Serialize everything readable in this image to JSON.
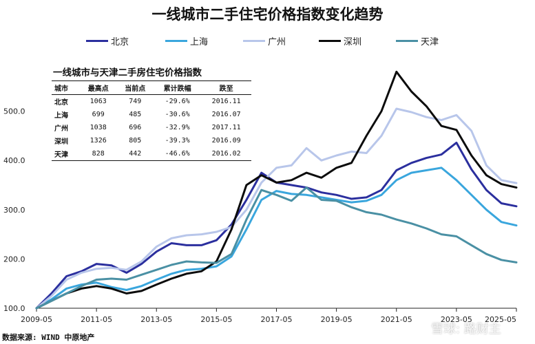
{
  "chart_data": {
    "type": "line",
    "title": "一线城市二手住宅价格指数变化趋势",
    "xlabel": "",
    "ylabel": "",
    "ylim": [
      100,
      600
    ],
    "xlim": [
      "2009-05",
      "2025-05"
    ],
    "x_ticks": [
      "2009-05",
      "2011-05",
      "2013-05",
      "2015-05",
      "2017-05",
      "2019-05",
      "2021-05",
      "2023-05",
      "2025-05"
    ],
    "y_ticks": [
      "100.0",
      "200.0",
      "300.0",
      "400.0",
      "500.0"
    ],
    "grid": false,
    "legend_position": "top",
    "series": [
      {
        "name": "北京",
        "color": "#2b2f9e",
        "points": [
          [
            "2009-05",
            100
          ],
          [
            "2009-11",
            130
          ],
          [
            "2010-05",
            165
          ],
          [
            "2010-11",
            175
          ],
          [
            "2011-05",
            190
          ],
          [
            "2011-11",
            187
          ],
          [
            "2012-05",
            172
          ],
          [
            "2012-11",
            190
          ],
          [
            "2013-05",
            215
          ],
          [
            "2013-11",
            232
          ],
          [
            "2014-05",
            228
          ],
          [
            "2014-11",
            228
          ],
          [
            "2015-05",
            238
          ],
          [
            "2015-11",
            270
          ],
          [
            "2016-05",
            320
          ],
          [
            "2016-11",
            375
          ],
          [
            "2017-05",
            355
          ],
          [
            "2017-11",
            350
          ],
          [
            "2018-05",
            345
          ],
          [
            "2018-11",
            335
          ],
          [
            "2019-05",
            330
          ],
          [
            "2019-11",
            322
          ],
          [
            "2020-05",
            325
          ],
          [
            "2020-11",
            340
          ],
          [
            "2021-05",
            380
          ],
          [
            "2021-11",
            395
          ],
          [
            "2022-05",
            405
          ],
          [
            "2022-11",
            412
          ],
          [
            "2023-05",
            436
          ],
          [
            "2023-11",
            382
          ],
          [
            "2024-05",
            340
          ],
          [
            "2024-11",
            313
          ],
          [
            "2025-05",
            307
          ]
        ]
      },
      {
        "name": "上海",
        "color": "#3aa6dd",
        "points": [
          [
            "2009-05",
            100
          ],
          [
            "2009-11",
            118
          ],
          [
            "2010-05",
            140
          ],
          [
            "2010-11",
            148
          ],
          [
            "2011-05",
            152
          ],
          [
            "2011-11",
            143
          ],
          [
            "2012-05",
            137
          ],
          [
            "2012-11",
            145
          ],
          [
            "2013-05",
            158
          ],
          [
            "2013-11",
            170
          ],
          [
            "2014-05",
            178
          ],
          [
            "2014-11",
            180
          ],
          [
            "2015-05",
            185
          ],
          [
            "2015-11",
            205
          ],
          [
            "2016-05",
            260
          ],
          [
            "2016-11",
            320
          ],
          [
            "2017-05",
            338
          ],
          [
            "2017-11",
            332
          ],
          [
            "2018-05",
            330
          ],
          [
            "2018-11",
            325
          ],
          [
            "2019-05",
            320
          ],
          [
            "2019-11",
            315
          ],
          [
            "2020-05",
            318
          ],
          [
            "2020-11",
            330
          ],
          [
            "2021-05",
            360
          ],
          [
            "2021-11",
            375
          ],
          [
            "2022-05",
            380
          ],
          [
            "2022-11",
            385
          ],
          [
            "2023-05",
            360
          ],
          [
            "2023-11",
            330
          ],
          [
            "2024-05",
            300
          ],
          [
            "2024-11",
            275
          ],
          [
            "2025-05",
            268
          ]
        ]
      },
      {
        "name": "广州",
        "color": "#b8c6ea",
        "points": [
          [
            "2009-05",
            100
          ],
          [
            "2009-11",
            125
          ],
          [
            "2010-05",
            158
          ],
          [
            "2010-11",
            172
          ],
          [
            "2011-05",
            180
          ],
          [
            "2011-11",
            182
          ],
          [
            "2012-05",
            178
          ],
          [
            "2012-11",
            195
          ],
          [
            "2013-05",
            225
          ],
          [
            "2013-11",
            242
          ],
          [
            "2014-05",
            248
          ],
          [
            "2014-11",
            250
          ],
          [
            "2015-05",
            255
          ],
          [
            "2015-11",
            265
          ],
          [
            "2016-05",
            300
          ],
          [
            "2016-11",
            355
          ],
          [
            "2017-05",
            385
          ],
          [
            "2017-11",
            390
          ],
          [
            "2018-05",
            425
          ],
          [
            "2018-11",
            400
          ],
          [
            "2019-05",
            410
          ],
          [
            "2019-11",
            418
          ],
          [
            "2020-05",
            415
          ],
          [
            "2020-11",
            450
          ],
          [
            "2021-05",
            505
          ],
          [
            "2021-11",
            498
          ],
          [
            "2022-05",
            488
          ],
          [
            "2022-11",
            482
          ],
          [
            "2023-05",
            492
          ],
          [
            "2023-11",
            460
          ],
          [
            "2024-05",
            390
          ],
          [
            "2024-11",
            360
          ],
          [
            "2025-05",
            354
          ]
        ]
      },
      {
        "name": "深圳",
        "color": "#0c0c0c",
        "points": [
          [
            "2009-05",
            100
          ],
          [
            "2009-11",
            115
          ],
          [
            "2010-05",
            130
          ],
          [
            "2010-11",
            140
          ],
          [
            "2011-05",
            145
          ],
          [
            "2011-11",
            140
          ],
          [
            "2012-05",
            130
          ],
          [
            "2012-11",
            135
          ],
          [
            "2013-05",
            148
          ],
          [
            "2013-11",
            160
          ],
          [
            "2014-05",
            170
          ],
          [
            "2014-11",
            175
          ],
          [
            "2015-05",
            195
          ],
          [
            "2015-11",
            260
          ],
          [
            "2016-05",
            350
          ],
          [
            "2016-11",
            370
          ],
          [
            "2017-05",
            355
          ],
          [
            "2017-11",
            360
          ],
          [
            "2018-05",
            375
          ],
          [
            "2018-11",
            365
          ],
          [
            "2019-05",
            385
          ],
          [
            "2019-11",
            395
          ],
          [
            "2020-05",
            450
          ],
          [
            "2020-11",
            500
          ],
          [
            "2021-05",
            580
          ],
          [
            "2021-11",
            540
          ],
          [
            "2022-05",
            510
          ],
          [
            "2022-11",
            470
          ],
          [
            "2023-05",
            462
          ],
          [
            "2023-11",
            410
          ],
          [
            "2024-05",
            370
          ],
          [
            "2024-11",
            352
          ],
          [
            "2025-05",
            345
          ]
        ]
      },
      {
        "name": "天津",
        "color": "#4a90a4",
        "points": [
          [
            "2009-05",
            100
          ],
          [
            "2009-11",
            115
          ],
          [
            "2010-05",
            130
          ],
          [
            "2010-11",
            145
          ],
          [
            "2011-05",
            158
          ],
          [
            "2011-11",
            160
          ],
          [
            "2012-05",
            158
          ],
          [
            "2012-11",
            168
          ],
          [
            "2013-05",
            178
          ],
          [
            "2013-11",
            188
          ],
          [
            "2014-05",
            195
          ],
          [
            "2014-11",
            193
          ],
          [
            "2015-05",
            192
          ],
          [
            "2015-11",
            210
          ],
          [
            "2016-05",
            280
          ],
          [
            "2016-11",
            340
          ],
          [
            "2017-05",
            330
          ],
          [
            "2017-11",
            318
          ],
          [
            "2018-05",
            345
          ],
          [
            "2018-11",
            320
          ],
          [
            "2019-05",
            318
          ],
          [
            "2019-11",
            305
          ],
          [
            "2020-05",
            295
          ],
          [
            "2020-11",
            290
          ],
          [
            "2021-05",
            280
          ],
          [
            "2021-11",
            272
          ],
          [
            "2022-05",
            262
          ],
          [
            "2022-11",
            250
          ],
          [
            "2023-05",
            246
          ],
          [
            "2023-11",
            228
          ],
          [
            "2024-05",
            210
          ],
          [
            "2024-11",
            198
          ],
          [
            "2025-05",
            193
          ]
        ]
      }
    ],
    "table": {
      "title": "一线城市与天津二手房住宅价格指数",
      "columns": [
        "城市",
        "最高点",
        "当前点",
        "累计跌幅",
        "跌至"
      ],
      "rows": [
        [
          "北京",
          "1063",
          "749",
          "-29.6%",
          "2016.11"
        ],
        [
          "上海",
          "699",
          "485",
          "-30.6%",
          "2016.07"
        ],
        [
          "广州",
          "1038",
          "696",
          "-32.9%",
          "2017.11"
        ],
        [
          "深圳",
          "1326",
          "805",
          "-39.3%",
          "2016.09"
        ],
        [
          "天津",
          "828",
          "442",
          "-46.6%",
          "2016.02"
        ]
      ]
    }
  },
  "source": "数据来源: WIND 中原地产",
  "watermark": "雪球: 路财主"
}
